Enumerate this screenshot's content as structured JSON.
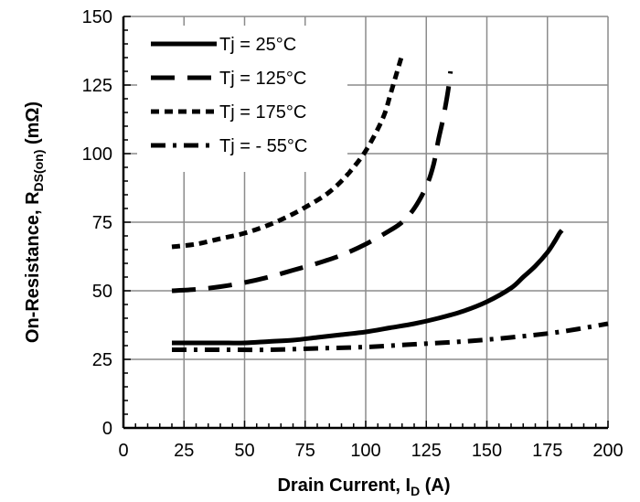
{
  "chart_data": {
    "type": "line",
    "title": "",
    "xlabel": {
      "main": "Drain Current, I",
      "sub": "D",
      "suffix": " (A)"
    },
    "ylabel": {
      "main": "On-Resistance, R",
      "sub": "DS(on)",
      "suffix": " (mΩ)"
    },
    "xlim": [
      0,
      200
    ],
    "ylim": [
      0,
      150
    ],
    "xticks": [
      0,
      25,
      50,
      75,
      100,
      125,
      150,
      175,
      200
    ],
    "yticks": [
      0,
      25,
      50,
      75,
      100,
      125,
      150
    ],
    "grid": true,
    "legend_position": "top-left",
    "series": [
      {
        "name": "Tj =  25°C",
        "style": "solid",
        "color": "#000000",
        "x": [
          20,
          30,
          40,
          50,
          60,
          70,
          80,
          90,
          100,
          110,
          120,
          130,
          140,
          150,
          160,
          165,
          170,
          175,
          178,
          180,
          181
        ],
        "y": [
          31,
          31,
          31,
          31,
          31.5,
          32,
          33,
          34,
          35,
          36.5,
          38,
          40,
          42.5,
          46,
          51,
          55,
          59,
          64,
          68,
          71,
          72
        ]
      },
      {
        "name": "Tj = 125°C",
        "style": "longdash",
        "color": "#000000",
        "x": [
          20,
          30,
          40,
          50,
          60,
          70,
          80,
          90,
          100,
          110,
          115,
          120,
          125,
          128,
          130,
          132,
          134,
          135
        ],
        "y": [
          50,
          50.5,
          51.5,
          53,
          55,
          57.5,
          60,
          63,
          67,
          72,
          75,
          80,
          88,
          96,
          105,
          113,
          123,
          130
        ]
      },
      {
        "name": "Tj = 175°C",
        "style": "shortdash",
        "color": "#000000",
        "x": [
          20,
          30,
          40,
          50,
          60,
          70,
          80,
          85,
          90,
          95,
          100,
          105,
          108,
          110,
          112,
          114,
          115
        ],
        "y": [
          66,
          67,
          69,
          71,
          74,
          78,
          83,
          86,
          90,
          95,
          101,
          109,
          115,
          121,
          127,
          133,
          136
        ]
      },
      {
        "name": "Tj = - 55°C",
        "style": "dashdot",
        "color": "#000000",
        "x": [
          20,
          40,
          60,
          80,
          100,
          120,
          140,
          160,
          180,
          200
        ],
        "y": [
          28.5,
          28.5,
          28.5,
          29,
          29.5,
          30.5,
          31.5,
          33,
          35,
          38
        ]
      }
    ]
  }
}
